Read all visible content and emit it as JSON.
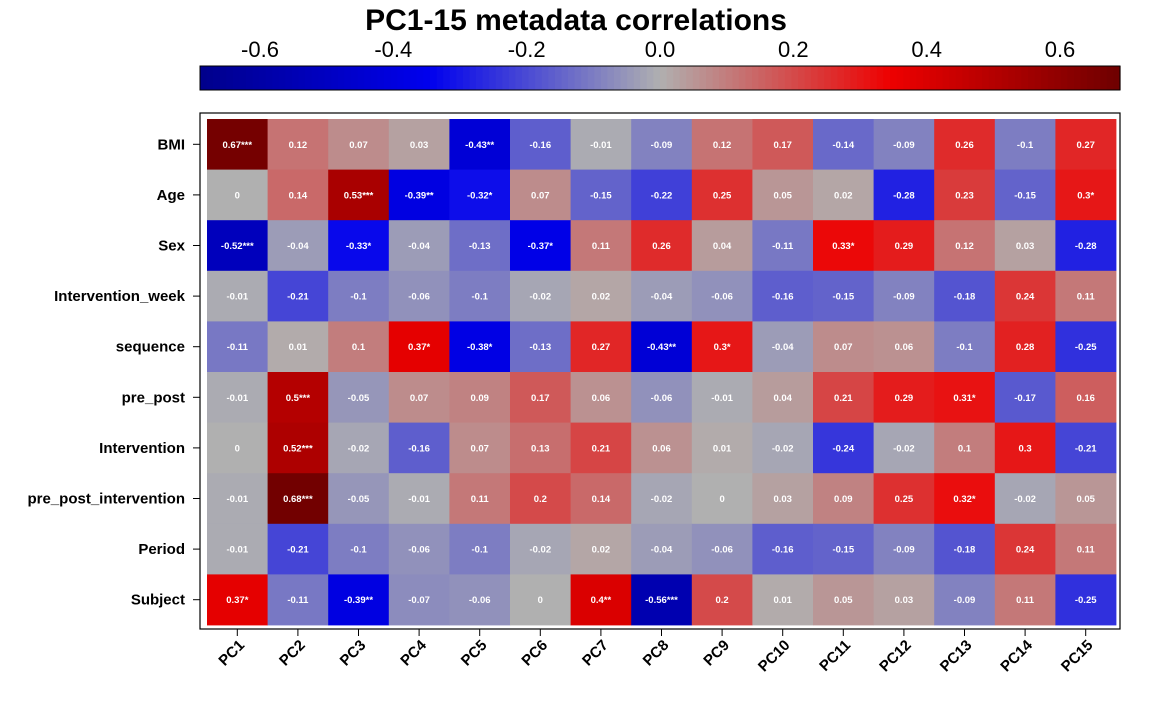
{
  "chart_data": {
    "type": "heatmap",
    "title": "PC1-15 metadata correlations",
    "colorscale": {
      "ticks": [
        "-0.6",
        "-0.4",
        "-0.2",
        "0.0",
        "0.2",
        "0.4",
        "0.6"
      ],
      "tick_values": [
        -0.6,
        -0.4,
        -0.2,
        0.0,
        0.2,
        0.4,
        0.6
      ],
      "range": [
        -0.69,
        0.69
      ],
      "colors": {
        "min": "#00008B",
        "low": "#0000EE",
        "mid": "#B0B0B0",
        "high": "#EE0000",
        "max": "#6E0000"
      }
    },
    "columns": [
      "PC1",
      "PC2",
      "PC3",
      "PC4",
      "PC5",
      "PC6",
      "PC7",
      "PC8",
      "PC9",
      "PC10",
      "PC11",
      "PC12",
      "PC13",
      "PC14",
      "PC15"
    ],
    "rows": [
      "BMI",
      "Age",
      "Sex",
      "Intervention_week",
      "sequence",
      "pre_post",
      "Intervention",
      "pre_post_intervention",
      "Period",
      "Subject"
    ],
    "values": [
      [
        0.67,
        0.12,
        0.07,
        0.03,
        -0.43,
        -0.16,
        -0.01,
        -0.09,
        0.12,
        0.17,
        -0.14,
        -0.09,
        0.26,
        -0.1,
        0.27
      ],
      [
        0,
        0.14,
        0.53,
        -0.39,
        -0.32,
        0.07,
        -0.15,
        -0.22,
        0.25,
        0.05,
        0.02,
        -0.28,
        0.23,
        -0.15,
        0.3
      ],
      [
        -0.52,
        -0.04,
        -0.33,
        -0.04,
        -0.13,
        -0.37,
        0.11,
        0.26,
        0.04,
        -0.11,
        0.33,
        0.29,
        0.12,
        0.03,
        -0.28
      ],
      [
        -0.01,
        -0.21,
        -0.1,
        -0.06,
        -0.1,
        -0.02,
        0.02,
        -0.04,
        -0.06,
        -0.16,
        -0.15,
        -0.09,
        -0.18,
        0.24,
        0.11
      ],
      [
        -0.11,
        0.01,
        0.1,
        0.37,
        -0.38,
        -0.13,
        0.27,
        -0.43,
        0.3,
        -0.04,
        0.07,
        0.06,
        -0.1,
        0.28,
        -0.25
      ],
      [
        -0.01,
        0.5,
        -0.05,
        0.07,
        0.09,
        0.17,
        0.06,
        -0.06,
        -0.01,
        0.04,
        0.21,
        0.29,
        0.31,
        -0.17,
        0.16
      ],
      [
        0,
        0.52,
        -0.02,
        -0.16,
        0.07,
        0.13,
        0.21,
        0.06,
        0.01,
        -0.02,
        -0.24,
        -0.02,
        0.1,
        0.3,
        -0.21
      ],
      [
        -0.01,
        0.68,
        -0.05,
        -0.01,
        0.11,
        0.2,
        0.14,
        -0.02,
        0,
        0.03,
        0.09,
        0.25,
        0.32,
        -0.02,
        0.05
      ],
      [
        -0.01,
        -0.21,
        -0.1,
        -0.06,
        -0.1,
        -0.02,
        0.02,
        -0.04,
        -0.06,
        -0.16,
        -0.15,
        -0.09,
        -0.18,
        0.24,
        0.11
      ],
      [
        0.37,
        -0.11,
        -0.39,
        -0.07,
        -0.06,
        0,
        0.4,
        -0.56,
        0.2,
        0.01,
        0.05,
        0.03,
        -0.09,
        0.11,
        -0.25
      ]
    ],
    "labels": [
      [
        "0.67***",
        "0.12",
        "0.07",
        "0.03",
        "-0.43**",
        "-0.16",
        "-0.01",
        "-0.09",
        "0.12",
        "0.17",
        "-0.14",
        "-0.09",
        "0.26",
        "-0.1",
        "0.27"
      ],
      [
        "0",
        "0.14",
        "0.53***",
        "-0.39**",
        "-0.32*",
        "0.07",
        "-0.15",
        "-0.22",
        "0.25",
        "0.05",
        "0.02",
        "-0.28",
        "0.23",
        "-0.15",
        "0.3*"
      ],
      [
        "-0.52***",
        "-0.04",
        "-0.33*",
        "-0.04",
        "-0.13",
        "-0.37*",
        "0.11",
        "0.26",
        "0.04",
        "-0.11",
        "0.33*",
        "0.29",
        "0.12",
        "0.03",
        "-0.28"
      ],
      [
        "-0.01",
        "-0.21",
        "-0.1",
        "-0.06",
        "-0.1",
        "-0.02",
        "0.02",
        "-0.04",
        "-0.06",
        "-0.16",
        "-0.15",
        "-0.09",
        "-0.18",
        "0.24",
        "0.11"
      ],
      [
        "-0.11",
        "0.01",
        "0.1",
        "0.37*",
        "-0.38*",
        "-0.13",
        "0.27",
        "-0.43**",
        "0.3*",
        "-0.04",
        "0.07",
        "0.06",
        "-0.1",
        "0.28",
        "-0.25"
      ],
      [
        "-0.01",
        "0.5***",
        "-0.05",
        "0.07",
        "0.09",
        "0.17",
        "0.06",
        "-0.06",
        "-0.01",
        "0.04",
        "0.21",
        "0.29",
        "0.31*",
        "-0.17",
        "0.16"
      ],
      [
        "0",
        "0.52***",
        "-0.02",
        "-0.16",
        "0.07",
        "0.13",
        "0.21",
        "0.06",
        "0.01",
        "-0.02",
        "-0.24",
        "-0.02",
        "0.1",
        "0.3",
        "-0.21"
      ],
      [
        "-0.01",
        "0.68***",
        "-0.05",
        "-0.01",
        "0.11",
        "0.2",
        "0.14",
        "-0.02",
        "0",
        "0.03",
        "0.09",
        "0.25",
        "0.32*",
        "-0.02",
        "0.05"
      ],
      [
        "-0.01",
        "-0.21",
        "-0.1",
        "-0.06",
        "-0.1",
        "-0.02",
        "0.02",
        "-0.04",
        "-0.06",
        "-0.16",
        "-0.15",
        "-0.09",
        "-0.18",
        "0.24",
        "0.11"
      ],
      [
        "0.37*",
        "-0.11",
        "-0.39**",
        "-0.07",
        "-0.06",
        "0",
        "0.4**",
        "-0.56***",
        "0.2",
        "0.01",
        "0.05",
        "0.03",
        "-0.09",
        "0.11",
        "-0.25"
      ]
    ]
  }
}
